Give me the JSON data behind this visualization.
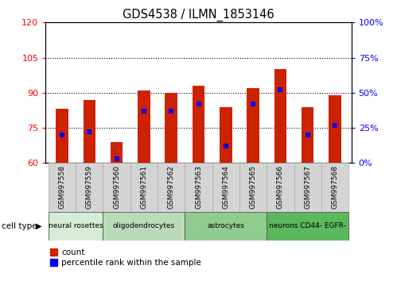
{
  "title": "GDS4538 / ILMN_1853146",
  "samples": [
    "GSM997558",
    "GSM997559",
    "GSM997560",
    "GSM997561",
    "GSM997562",
    "GSM997563",
    "GSM997564",
    "GSM997565",
    "GSM997566",
    "GSM997567",
    "GSM997568"
  ],
  "counts": [
    83,
    87,
    69,
    91,
    90,
    93,
    84,
    92,
    100,
    84,
    89
  ],
  "percentile_ranks": [
    20,
    22,
    3,
    37,
    37,
    42,
    12,
    42,
    52,
    20,
    27
  ],
  "cell_types": [
    {
      "label": "neural rosettes",
      "start": 0,
      "end": 2,
      "color": "#d6ecd6"
    },
    {
      "label": "oligodendrocytes",
      "start": 2,
      "end": 5,
      "color": "#b8dbb8"
    },
    {
      "label": "astrocytes",
      "start": 5,
      "end": 8,
      "color": "#90cc90"
    },
    {
      "label": "neurons CD44- EGFR-",
      "start": 8,
      "end": 11,
      "color": "#5cb85c"
    }
  ],
  "ylim_left": [
    60,
    120
  ],
  "ylim_right": [
    0,
    100
  ],
  "yticks_left": [
    60,
    75,
    90,
    105,
    120
  ],
  "yticks_right": [
    0,
    25,
    50,
    75,
    100
  ],
  "bar_color": "#cc2200",
  "marker_color": "#0000ee",
  "bar_width": 0.45,
  "background_color": "#ffffff",
  "gridlines": [
    75,
    90,
    105
  ]
}
